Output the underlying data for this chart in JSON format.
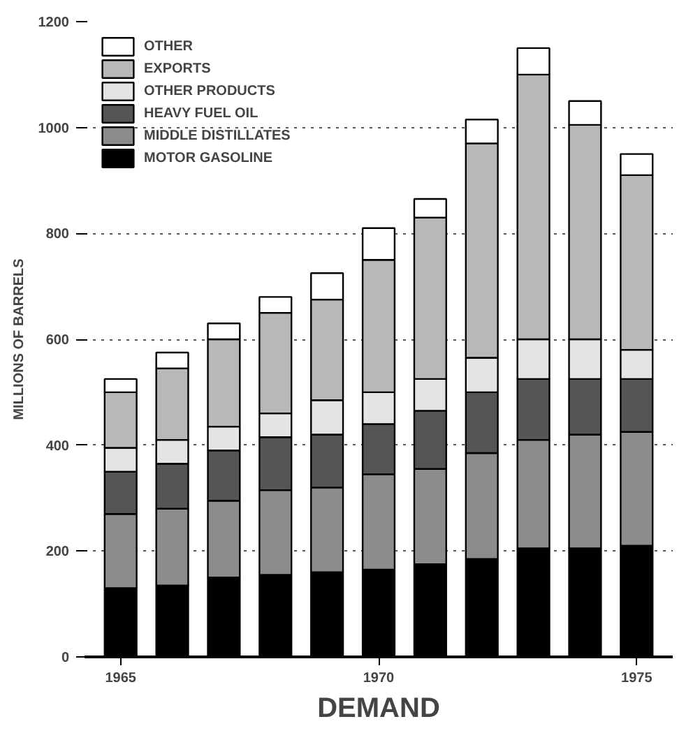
{
  "chart_data": {
    "type": "bar",
    "stacked": true,
    "xlabel": "DEMAND",
    "ylabel": "MILLIONS OF BARRELS",
    "x": [
      1965,
      1966,
      1967,
      1968,
      1969,
      1970,
      1971,
      1972,
      1973,
      1974,
      1975
    ],
    "xlim": [
      1964.3,
      1975.7
    ],
    "xticks": [
      1965,
      1970,
      1975
    ],
    "ylim": [
      0,
      1200
    ],
    "yticks": [
      0,
      200,
      400,
      600,
      800,
      1000,
      1200
    ],
    "grid": "y",
    "legend": "top left",
    "series": [
      {
        "name": "MOTOR GASOLINE",
        "color": "#000000",
        "values": [
          130,
          135,
          150,
          155,
          160,
          165,
          175,
          185,
          205,
          205,
          210
        ]
      },
      {
        "name": "MIDDLE DISTILLATES",
        "color": "#8c8c8c",
        "values": [
          140,
          145,
          145,
          160,
          160,
          180,
          180,
          200,
          205,
          215,
          215
        ]
      },
      {
        "name": "HEAVY FUEL OIL",
        "color": "#555555",
        "values": [
          80,
          85,
          95,
          100,
          100,
          95,
          110,
          115,
          115,
          105,
          100
        ]
      },
      {
        "name": "OTHER PRODUCTS",
        "color": "#e4e4e4",
        "values": [
          45,
          45,
          45,
          45,
          65,
          60,
          60,
          65,
          75,
          75,
          55
        ]
      },
      {
        "name": "EXPORTS",
        "color": "#b8b8b8",
        "values": [
          105,
          135,
          165,
          190,
          190,
          250,
          305,
          405,
          500,
          405,
          330
        ]
      },
      {
        "name": "OTHER",
        "color": "#ffffff",
        "values": [
          25,
          30,
          30,
          30,
          50,
          60,
          35,
          45,
          50,
          45,
          40
        ]
      }
    ]
  }
}
